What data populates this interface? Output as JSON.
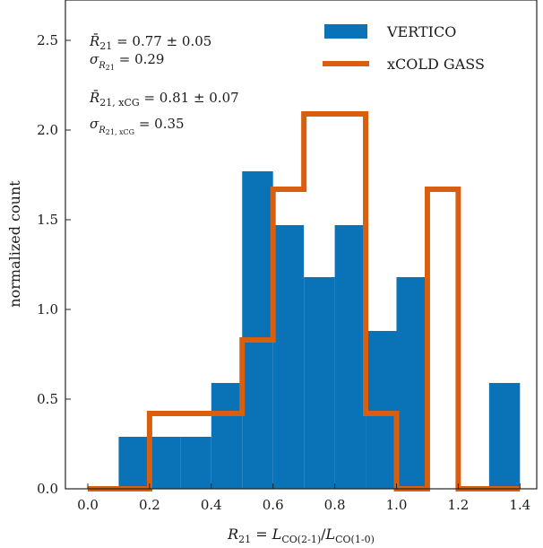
{
  "chart_data": {
    "type": "histogram",
    "xlabel": "R_21 = L_CO(2-1)/L_CO(1-0)",
    "ylabel": "normalized count",
    "xlim": [
      -0.1,
      1.45
    ],
    "ylim": [
      0,
      2.6
    ],
    "x_ticks": [
      "0.0",
      "0.2",
      "0.4",
      "0.6",
      "0.8",
      "1.0",
      "1.2",
      "1.4"
    ],
    "y_ticks": [
      "0.0",
      "0.5",
      "1.0",
      "1.5",
      "2.0",
      "2.5"
    ],
    "bin_edges": [
      0.0,
      0.1,
      0.2,
      0.3,
      0.4,
      0.5,
      0.6,
      0.7,
      0.8,
      0.9,
      1.0,
      1.1,
      1.2,
      1.3,
      1.4
    ],
    "series": [
      {
        "name": "VERTICO",
        "style": "filled",
        "color": "#0a72b6",
        "values": [
          0.0,
          0.29,
          0.29,
          0.29,
          0.59,
          1.77,
          1.47,
          1.18,
          1.47,
          0.88,
          1.18,
          0.0,
          0.0,
          0.59
        ]
      },
      {
        "name": "xCOLD GASS",
        "style": "step",
        "color": "#d95f0e",
        "values": [
          0.0,
          0.0,
          0.42,
          0.42,
          0.42,
          0.83,
          1.67,
          2.09,
          2.09,
          0.42,
          0.0,
          1.67,
          0.0,
          0.0
        ]
      }
    ],
    "legend_position": "top-right",
    "annotations": [
      {
        "text": "R̄21 = 0.77 ± 0.05"
      },
      {
        "text": "σR21 = 0.29"
      },
      {
        "text": "R̄21, xCG = 0.81 ± 0.07"
      },
      {
        "text": "σR21, xCG = 0.35"
      }
    ]
  }
}
